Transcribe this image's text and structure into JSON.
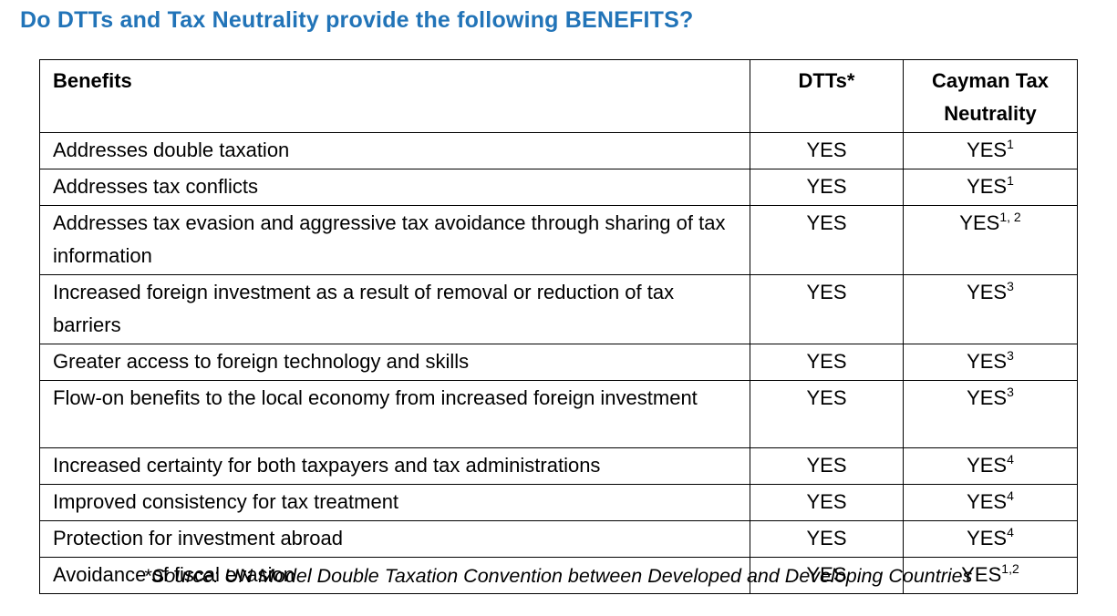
{
  "title": "Do DTTs and Tax Neutrality provide the following BENEFITS?",
  "colors": {
    "title_blue": "#2274B8",
    "border": "#000000",
    "text": "#000000",
    "background": "#ffffff"
  },
  "table": {
    "headers": {
      "benefits": "Benefits",
      "dtts": "DTTs*",
      "cayman": "Cayman Tax Neutrality"
    },
    "rows": [
      {
        "benefit": "Addresses double taxation",
        "dtts": "YES",
        "cayman": "YES",
        "cayman_sup": "1"
      },
      {
        "benefit": "Addresses tax conflicts",
        "dtts": "YES",
        "cayman": "YES",
        "cayman_sup": "1"
      },
      {
        "benefit": "Addresses tax evasion and aggressive tax avoidance through sharing of tax information",
        "dtts": "YES",
        "cayman": "YES",
        "cayman_sup": "1, 2"
      },
      {
        "benefit": "Increased foreign investment as a result of removal or reduction of tax barriers",
        "dtts": "YES",
        "cayman": "YES",
        "cayman_sup": "3"
      },
      {
        "benefit": "Greater access to foreign technology and skills",
        "dtts": "YES",
        "cayman": "YES",
        "cayman_sup": "3"
      },
      {
        "benefit": "Flow-on benefits to the local economy from increased foreign investment",
        "dtts": "YES",
        "cayman": "YES",
        "cayman_sup": "3"
      },
      {
        "benefit": "Increased certainty for both taxpayers and tax administrations",
        "dtts": "YES",
        "cayman": "YES",
        "cayman_sup": "4"
      },
      {
        "benefit": "Improved consistency for tax treatment",
        "dtts": "YES",
        "cayman": "YES",
        "cayman_sup": "4"
      },
      {
        "benefit": "Protection for investment abroad",
        "dtts": "YES",
        "cayman": "YES",
        "cayman_sup": "4"
      },
      {
        "benefit": "Avoidance of fiscal evasion",
        "dtts": "YES",
        "cayman": "YES",
        "cayman_sup": "1,2"
      }
    ]
  },
  "footnote": "*Source: UN Model Double Taxation Convention between Developed and Developing Countries"
}
